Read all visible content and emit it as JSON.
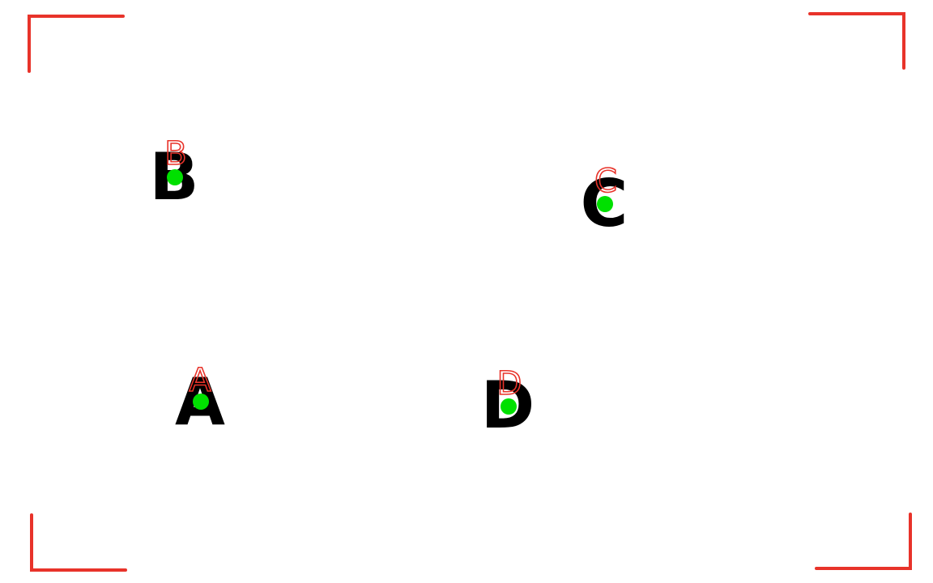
{
  "colors": {
    "background": "#ffffff",
    "frame": "#e8332a",
    "letter": "#000000",
    "label": "#e8332a",
    "dot": "#00e000"
  },
  "markers": {
    "a": {
      "letter": "A",
      "label": "A"
    },
    "b": {
      "letter": "B",
      "label": "B"
    },
    "c": {
      "letter": "C",
      "label": "C"
    },
    "d": {
      "letter": "D",
      "label": "D"
    }
  }
}
